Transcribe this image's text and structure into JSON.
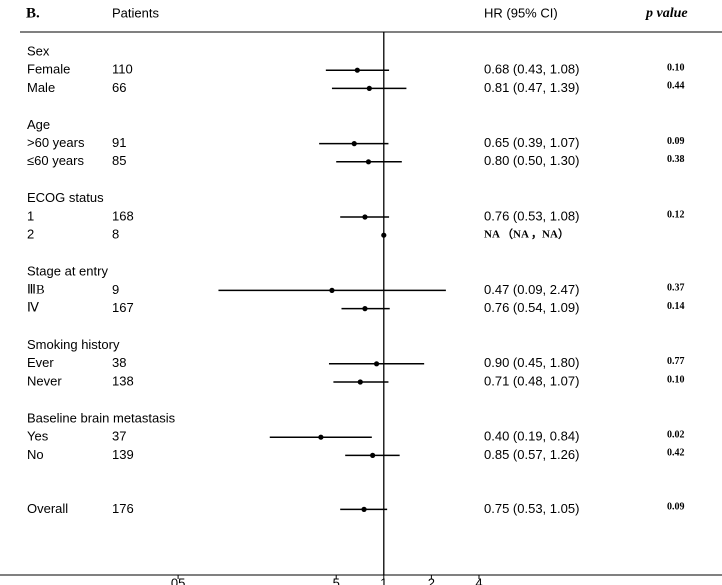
{
  "chart_data": {
    "type": "forest",
    "panel": "B.",
    "headers": {
      "patients": "Patients",
      "hr": "HR (95% CI)",
      "p": "p value"
    },
    "xscale": "log",
    "xlim": [
      0.005,
      100
    ],
    "xticks": [
      {
        "value": 0.05,
        "label": "05"
      },
      {
        "value": 0.5,
        "label": "5"
      },
      1,
      2,
      4
    ],
    "ref_line": 1,
    "color": "#000000",
    "groups": [
      {
        "name": "Sex",
        "rows": [
          {
            "label": "Female",
            "patients": 110,
            "hr": 0.68,
            "lo": 0.43,
            "hi": 1.08,
            "hr_label": "0.68 (0.43, 1.08)",
            "p": 0.1,
            "p_label": "0.10"
          },
          {
            "label": "Male",
            "patients": 66,
            "hr": 0.81,
            "lo": 0.47,
            "hi": 1.39,
            "hr_label": "0.81 (0.47, 1.39)",
            "p": 0.44,
            "p_label": "0.44"
          }
        ]
      },
      {
        "name": "Age",
        "rows": [
          {
            "label": ">60 years",
            "patients": 91,
            "hr": 0.65,
            "lo": 0.39,
            "hi": 1.07,
            "hr_label": "0.65 (0.39, 1.07)",
            "p": 0.09,
            "p_label": "0.09"
          },
          {
            "label": "≤60 years",
            "patients": 85,
            "hr": 0.8,
            "lo": 0.5,
            "hi": 1.3,
            "hr_label": "0.80 (0.50, 1.30)",
            "p": 0.38,
            "p_label": "0.38"
          }
        ]
      },
      {
        "name": "ECOG status",
        "rows": [
          {
            "label": "1",
            "patients": 168,
            "hr": 0.76,
            "lo": 0.53,
            "hi": 1.08,
            "hr_label": "0.76 (0.53, 1.08)",
            "p": 0.12,
            "p_label": "0.12"
          },
          {
            "label": "2",
            "patients": 8,
            "hr": 1,
            "lo": null,
            "hi": null,
            "hr_label": "NA （NA ，NA）",
            "p": null,
            "p_label": null
          }
        ]
      },
      {
        "name": "Stage at entry",
        "rows": [
          {
            "label": "ⅢB",
            "patients": 9,
            "hr": 0.47,
            "lo": 0.09,
            "hi": 2.47,
            "hr_label": "0.47 (0.09, 2.47)",
            "p": 0.37,
            "p_label": "0.37"
          },
          {
            "label": "Ⅳ",
            "patients": 167,
            "hr": 0.76,
            "lo": 0.54,
            "hi": 1.09,
            "hr_label": "0.76 (0.54, 1.09)",
            "p": 0.14,
            "p_label": "0.14"
          }
        ]
      },
      {
        "name": "Smoking history",
        "rows": [
          {
            "label": "Ever",
            "patients": 38,
            "hr": 0.9,
            "lo": 0.45,
            "hi": 1.8,
            "hr_label": "0.90 (0.45, 1.80)",
            "p": 0.77,
            "p_label": "0.77"
          },
          {
            "label": "Never",
            "patients": 138,
            "hr": 0.71,
            "lo": 0.48,
            "hi": 1.07,
            "hr_label": "0.71 (0.48, 1.07)",
            "p": 0.1,
            "p_label": "0.10"
          }
        ]
      },
      {
        "name": "Baseline brain metastasis",
        "rows": [
          {
            "label": "Yes",
            "patients": 37,
            "hr": 0.4,
            "lo": 0.19,
            "hi": 0.84,
            "hr_label": "0.40 (0.19, 0.84)",
            "p": 0.02,
            "p_label": "0.02"
          },
          {
            "label": "No",
            "patients": 139,
            "hr": 0.85,
            "lo": 0.57,
            "hi": 1.26,
            "hr_label": "0.85 (0.57, 1.26)",
            "p": 0.42,
            "p_label": "0.42"
          }
        ]
      }
    ],
    "overall": {
      "label": "Overall",
      "patients": 176,
      "hr": 0.75,
      "lo": 0.53,
      "hi": 1.05,
      "hr_label": "0.75 (0.53, 1.05)",
      "p": 0.09,
      "p_label": "0.09"
    }
  }
}
